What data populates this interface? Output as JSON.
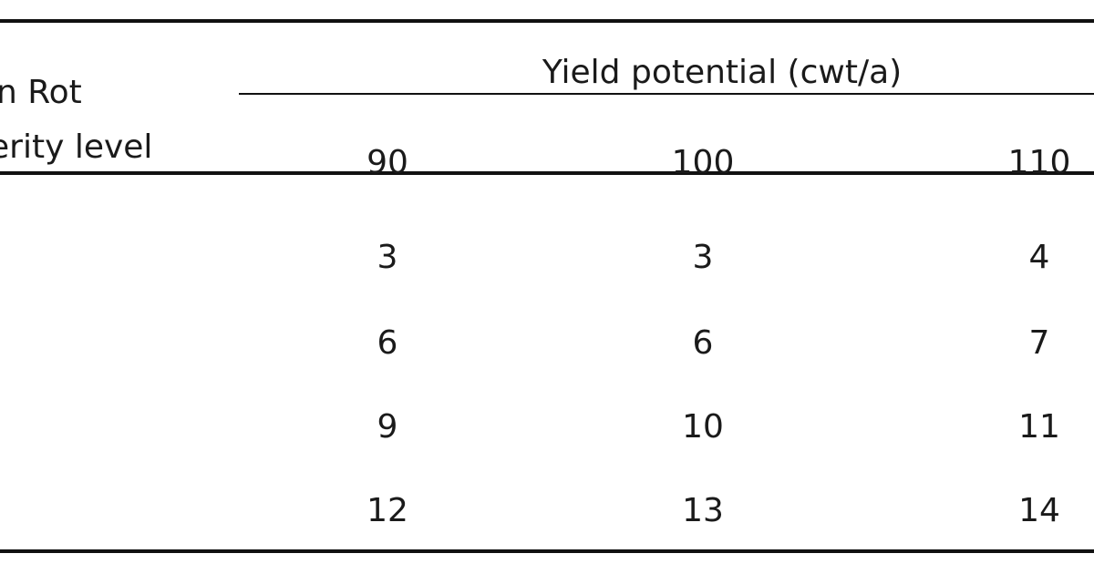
{
  "table": {
    "row_header_lines": [
      "n Rot",
      "erity level"
    ],
    "group_header": "Yield potential (cwt/a)",
    "columns": [
      "90",
      "100",
      "110"
    ],
    "rows": [
      [
        "3",
        "3",
        "4"
      ],
      [
        "6",
        "6",
        "7"
      ],
      [
        "9",
        "10",
        "11"
      ],
      [
        "12",
        "13",
        "14"
      ]
    ]
  }
}
